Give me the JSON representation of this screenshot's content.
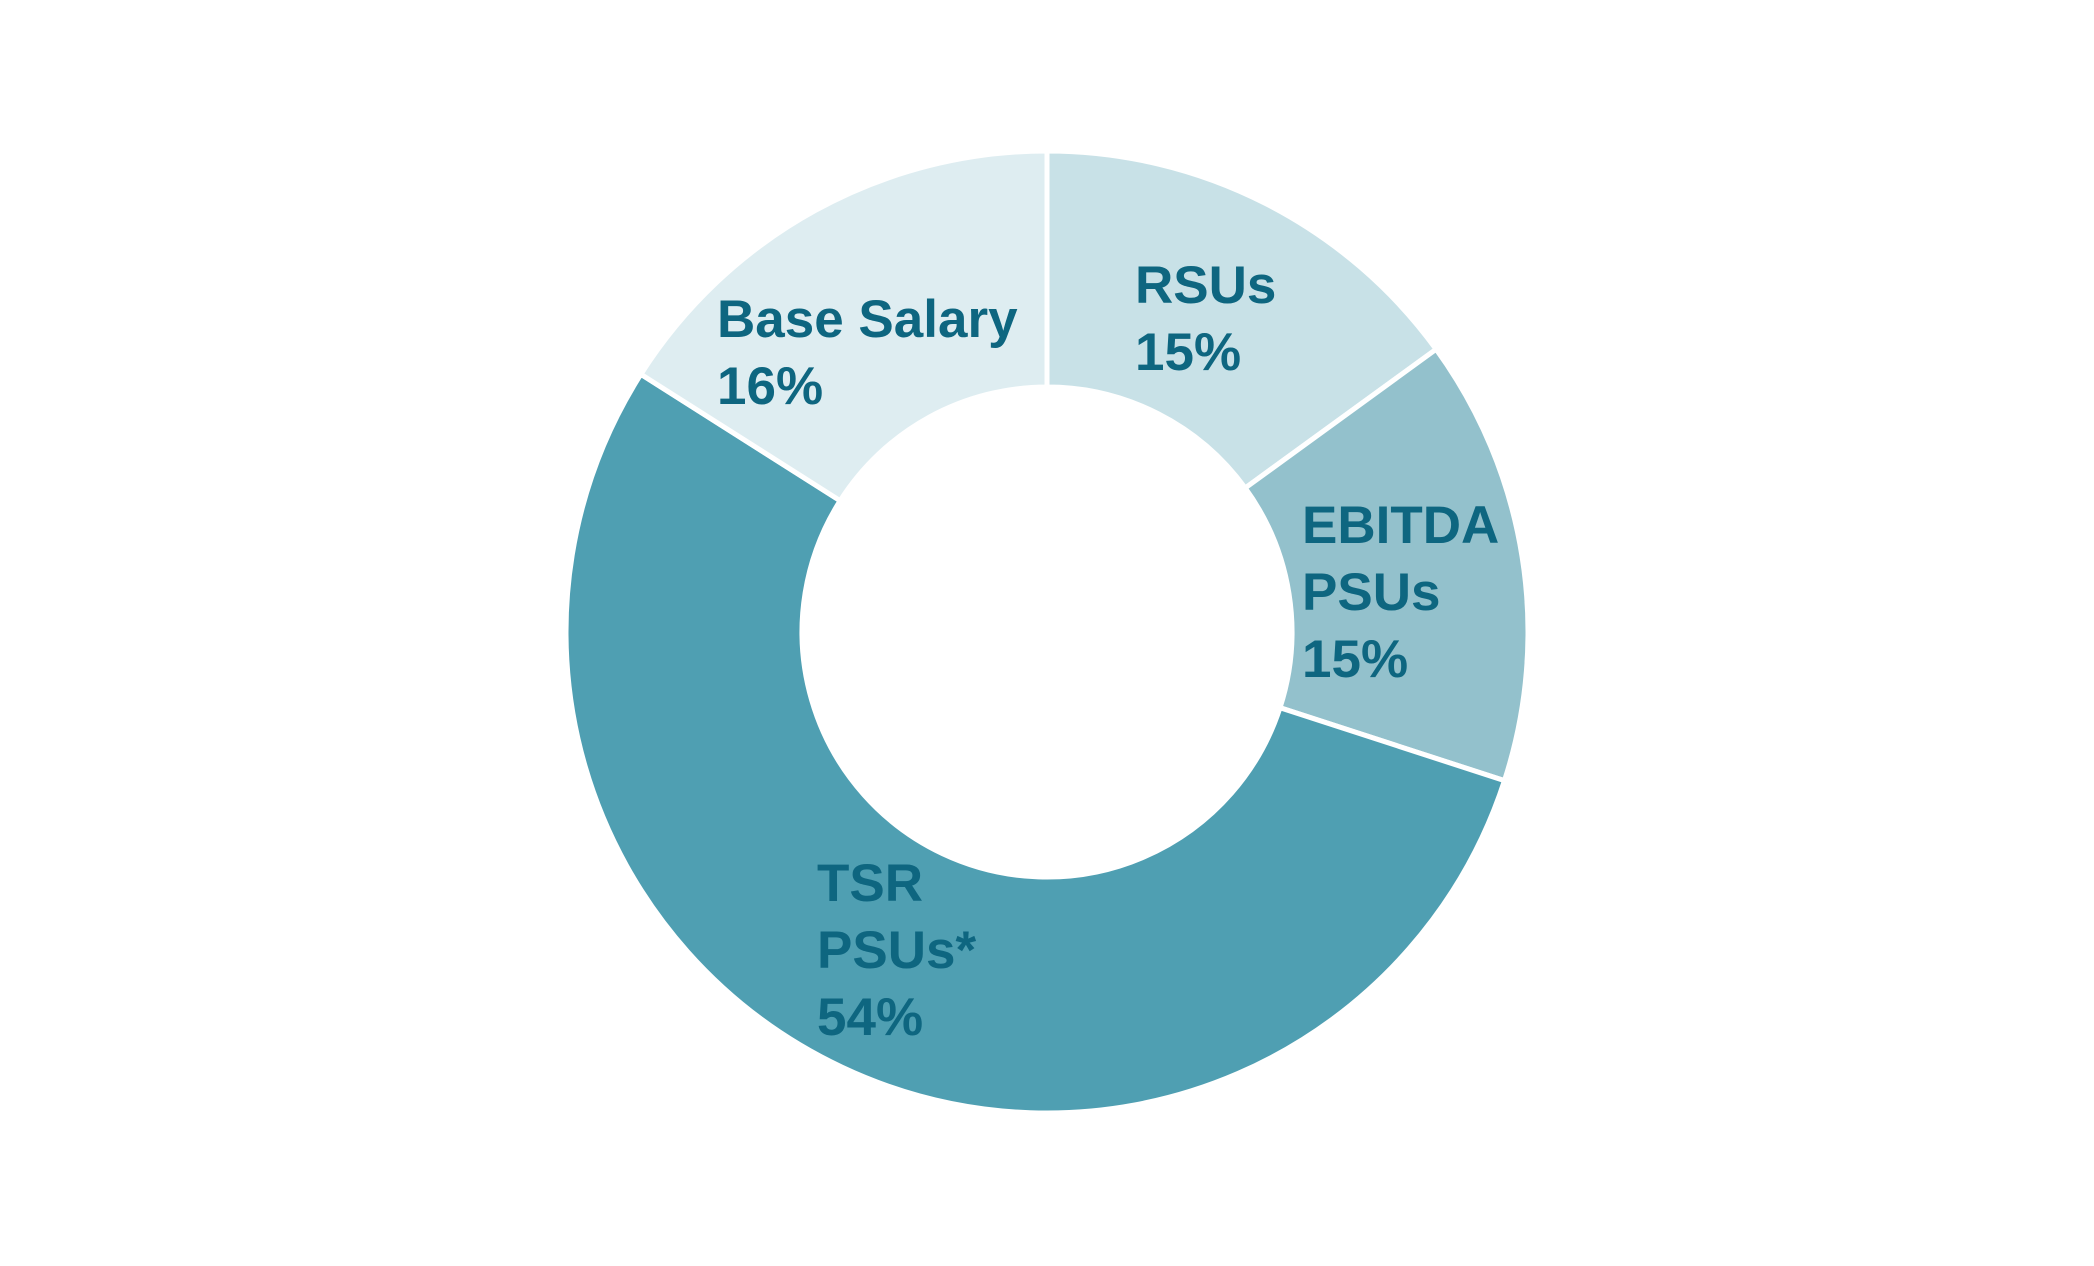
{
  "chart_data": {
    "type": "donut",
    "categories": [
      "RSUs",
      "EBITDA PSUs",
      "TSR PSUs*",
      "Base Salary"
    ],
    "values": [
      15,
      15,
      54,
      16
    ],
    "value_labels": [
      "15%",
      "15%",
      "54%",
      "16%"
    ],
    "colors": [
      "#c8e1e7",
      "#93c1cc",
      "#4f9fb2",
      "#deedf1"
    ],
    "label_color": "#0e6680"
  }
}
